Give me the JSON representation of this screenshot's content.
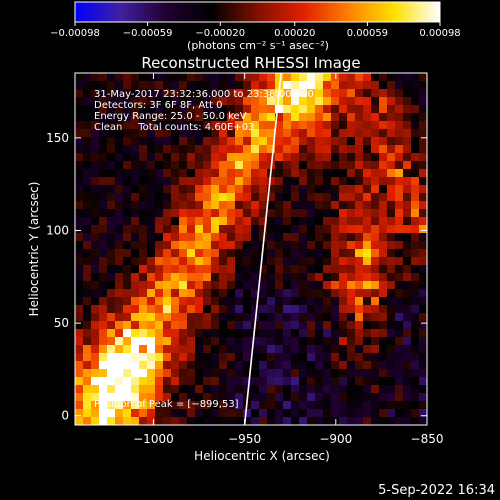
{
  "chart_data": {
    "type": "heatmap",
    "title": "Reconstructed RHESSI Image",
    "xlabel": "Heliocentric X (arcsec)",
    "ylabel": "Heliocentric Y (arcsec)",
    "xlim": [
      -1043,
      -850
    ],
    "ylim": [
      -5,
      185
    ],
    "x_ticks": [
      -1000,
      -950,
      -900,
      -850
    ],
    "x_tick_labels": [
      "−1000",
      "−950",
      "−900",
      "−850"
    ],
    "y_ticks": [
      0,
      50,
      100,
      150
    ],
    "y_tick_labels": [
      "0",
      "50",
      "100",
      "150"
    ],
    "colorbar": {
      "range": [
        -0.00098,
        0.00098
      ],
      "ticks": [
        -0.00098,
        -0.00059,
        -0.0002,
        0.0002,
        0.00059,
        0.00098
      ],
      "tick_labels": [
        "−0.00098",
        "−0.00059",
        "−0.00020",
        "0.00020",
        "0.00059",
        "0.00098"
      ],
      "units": "(photons cm⁻² s⁻¹ asec⁻²)"
    },
    "annotations": [
      "31-May-2017 23:32:36.000 to 23:38:00.000",
      "Detectors: 3F 6F 8F, Att 0",
      "Energy Range: 25.0 - 50.0 keV",
      "Clean     Total counts: 4.60E+03"
    ],
    "peak_label": "Position of Peak = [−899,53]",
    "peak": [
      -899,
      53
    ],
    "limb_line": [
      [
        -950,
        -5
      ],
      [
        -930,
        185
      ]
    ],
    "colormap_stops": [
      "#0000ff",
      "#4020a0",
      "#200030",
      "#000000",
      "#801000",
      "#e02000",
      "#ff8000",
      "#ffe000",
      "#ffffff"
    ]
  },
  "footer_timestamp": "5-Sep-2022 16:34"
}
